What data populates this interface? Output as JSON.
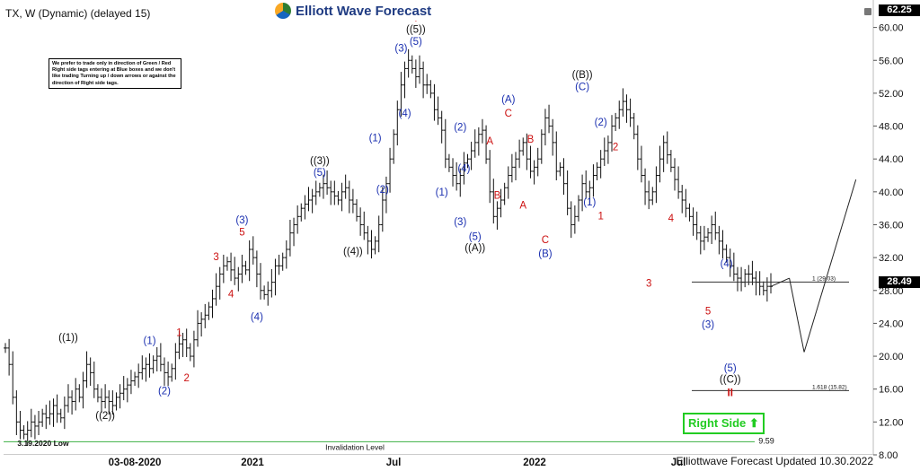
{
  "header": {
    "symbol_line": "TX, W (Dynamic) (delayed 15)"
  },
  "logo": {
    "text": "Elliott Wave Forecast",
    "icon": "ewf-globe-icon"
  },
  "note": {
    "text": "We prefer to trade only in direction of Green / Red Right side tags entering at Blue boxes and we don't like trading Turning up / down arrows or against the direction of Right side tags."
  },
  "price_axis": {
    "current_top": "62.25",
    "current_price": "28.49",
    "ticks": [
      "60.00",
      "56.00",
      "52.00",
      "48.00",
      "44.00",
      "40.00",
      "36.00",
      "32.00",
      "28.00",
      "24.00",
      "20.00",
      "16.00",
      "12.00",
      "8.00"
    ]
  },
  "time_axis": {
    "labels": [
      "03-08-2020",
      "2021",
      "Jul",
      "2022",
      "Jul"
    ]
  },
  "badge": {
    "right_side": "Right Side",
    "arrow_icon": "up-arrow-icon"
  },
  "footer": {
    "updated": "Elliottwave Forecast Updated 10.30.2022"
  },
  "colors": {
    "black": "#111111",
    "blue": "#1a2fb0",
    "red": "#cc1111",
    "green": "#22cc22",
    "invalidation": "#3cb043"
  },
  "chart_data": {
    "type": "ohlc",
    "title": "TX, W (Dynamic) (delayed 15)",
    "ylim": [
      8,
      62.25
    ],
    "y_scale": "linear",
    "grid": false,
    "closes": [
      21,
      19,
      15,
      12,
      11,
      10.5,
      11,
      12,
      11.5,
      12,
      13,
      12.5,
      13,
      14,
      13,
      12.5,
      14,
      15,
      14.5,
      16,
      15,
      17,
      19,
      18,
      16,
      15,
      14.5,
      15,
      14.5,
      14,
      15,
      15.5,
      16,
      16.5,
      17,
      17.5,
      18,
      18.5,
      19,
      18.5,
      19.5,
      20,
      19,
      18,
      17.5,
      18.5,
      20.5,
      21.5,
      22,
      21,
      20,
      22,
      24,
      24.5,
      25,
      26,
      27,
      28.5,
      30,
      31,
      31.5,
      30.5,
      29.5,
      30,
      31,
      30.5,
      33,
      32,
      30,
      28,
      27.5,
      28,
      29,
      31,
      31,
      32,
      33,
      35,
      36,
      37,
      38,
      38.5,
      39,
      39.5,
      40,
      40.5,
      41,
      40.5,
      40,
      39.5,
      39,
      40,
      40.5,
      39,
      38.5,
      37,
      36,
      35,
      34,
      33,
      34,
      36,
      39,
      41,
      44,
      47,
      50,
      53,
      55,
      56,
      55,
      54,
      55,
      53,
      53,
      52,
      50,
      49,
      47.5,
      44,
      43,
      42,
      41,
      42,
      43.5,
      44,
      45,
      46,
      47,
      47.5,
      44,
      40,
      37,
      38,
      39,
      40.5,
      42,
      43,
      44,
      45,
      46,
      44,
      42.5,
      43,
      44,
      47,
      49,
      48,
      46,
      42.5,
      43,
      41,
      38,
      36,
      37,
      39,
      41,
      40,
      40.5,
      42,
      43,
      44,
      45,
      46,
      48,
      49,
      50,
      51,
      50,
      49,
      47,
      44,
      42,
      40,
      39,
      40,
      42,
      44,
      46,
      44.5,
      43,
      41.5,
      40,
      39,
      38,
      37,
      36,
      35,
      34,
      34.5,
      35,
      36,
      35,
      34,
      33,
      32,
      31,
      30,
      29.5,
      29,
      30,
      30,
      29.5,
      29,
      28.5,
      28,
      28.5,
      28.49
    ],
    "projection": [
      [
        28.49,
        5,
        29.5
      ],
      [
        29.5,
        4,
        20.5
      ],
      [
        20.5,
        14,
        41.5
      ]
    ],
    "levels": [
      {
        "name": "fib-1.0",
        "label": "1 (29.03)",
        "value": 29.03
      },
      {
        "name": "fib-1.618",
        "label": "1.618 (15.82)",
        "value": 15.82
      },
      {
        "name": "invalidation",
        "label": "Invalidation Level",
        "value": 9.59,
        "value_label": "9.59"
      }
    ],
    "low_label": "3.19.2020 Low",
    "wave_labels": [
      {
        "text": "((1))",
        "i": 17,
        "y": 22.3,
        "color": "black"
      },
      {
        "text": "((2))",
        "i": 27,
        "y": 12.8,
        "color": "black"
      },
      {
        "text": "(1)",
        "i": 39,
        "y": 21.9,
        "color": "blue"
      },
      {
        "text": "(2)",
        "i": 43,
        "y": 15.8,
        "color": "blue"
      },
      {
        "text": "1",
        "i": 47,
        "y": 22.9,
        "color": "red"
      },
      {
        "text": "2",
        "i": 49,
        "y": 17.4,
        "color": "red"
      },
      {
        "text": "3",
        "i": 57,
        "y": 32.1,
        "color": "red"
      },
      {
        "text": "4",
        "i": 61,
        "y": 27.6,
        "color": "red"
      },
      {
        "text": "5",
        "i": 64,
        "y": 35.1,
        "color": "red"
      },
      {
        "text": "(3)",
        "i": 64,
        "y": 36.6,
        "color": "blue"
      },
      {
        "text": "(4)",
        "i": 68,
        "y": 24.8,
        "color": "blue"
      },
      {
        "text": "((3))",
        "i": 85,
        "y": 43.8,
        "color": "black"
      },
      {
        "text": "(5)",
        "i": 85,
        "y": 42.4,
        "color": "blue"
      },
      {
        "text": "((4))",
        "i": 94,
        "y": 32.8,
        "color": "black"
      },
      {
        "text": "(1)",
        "i": 100,
        "y": 46.6,
        "color": "blue"
      },
      {
        "text": "(2)",
        "i": 102,
        "y": 40.3,
        "color": "blue"
      },
      {
        "text": "(3)",
        "i": 107,
        "y": 57.5,
        "color": "blue"
      },
      {
        "text": "(4)",
        "i": 108,
        "y": 49.6,
        "color": "blue"
      },
      {
        "text": "(5)",
        "i": 111,
        "y": 58.3,
        "color": "blue"
      },
      {
        "text": "((5))",
        "i": 111,
        "y": 59.8,
        "color": "black"
      },
      {
        "text": "I",
        "i": 111,
        "y": 61.2,
        "color": "red"
      },
      {
        "text": "(1)",
        "i": 118,
        "y": 40.0,
        "color": "blue"
      },
      {
        "text": "(2)",
        "i": 123,
        "y": 47.9,
        "color": "blue"
      },
      {
        "text": "(4)",
        "i": 124,
        "y": 42.9,
        "color": "blue"
      },
      {
        "text": "(3)",
        "i": 123,
        "y": 36.4,
        "color": "blue"
      },
      {
        "text": "(5)",
        "i": 127,
        "y": 34.6,
        "color": "blue"
      },
      {
        "text": "((A))",
        "i": 127,
        "y": 33.2,
        "color": "black"
      },
      {
        "text": "A",
        "i": 131,
        "y": 46.2,
        "color": "red"
      },
      {
        "text": "B",
        "i": 133,
        "y": 39.6,
        "color": "red"
      },
      {
        "text": "(A)",
        "i": 136,
        "y": 51.3,
        "color": "blue"
      },
      {
        "text": "C",
        "i": 136,
        "y": 49.6,
        "color": "red"
      },
      {
        "text": "A",
        "i": 140,
        "y": 38.4,
        "color": "red"
      },
      {
        "text": "B",
        "i": 142,
        "y": 46.4,
        "color": "red"
      },
      {
        "text": "C",
        "i": 146,
        "y": 34.2,
        "color": "red"
      },
      {
        "text": "(B)",
        "i": 146,
        "y": 32.5,
        "color": "blue"
      },
      {
        "text": "((B))",
        "i": 156,
        "y": 54.3,
        "color": "black"
      },
      {
        "text": "(C)",
        "i": 156,
        "y": 52.8,
        "color": "blue"
      },
      {
        "text": "(2)",
        "i": 161,
        "y": 48.5,
        "color": "blue"
      },
      {
        "text": "2",
        "i": 165,
        "y": 45.5,
        "color": "red"
      },
      {
        "text": "(1)",
        "i": 158,
        "y": 38.8,
        "color": "blue"
      },
      {
        "text": "1",
        "i": 161,
        "y": 37.1,
        "color": "red"
      },
      {
        "text": "4",
        "i": 180,
        "y": 36.8,
        "color": "red"
      },
      {
        "text": "3",
        "i": 174,
        "y": 28.9,
        "color": "red"
      },
      {
        "text": "(4)",
        "i": 195,
        "y": 31.3,
        "color": "blue"
      },
      {
        "text": "5",
        "i": 190,
        "y": 25.5,
        "color": "red"
      },
      {
        "text": "(3)",
        "i": 190,
        "y": 23.9,
        "color": "blue"
      },
      {
        "text": "(5)",
        "i": 196,
        "y": 18.6,
        "color": "blue"
      },
      {
        "text": "((C))",
        "i": 196,
        "y": 17.2,
        "color": "black"
      },
      {
        "text": "II",
        "i": 196,
        "y": 15.6,
        "color": "red"
      }
    ]
  }
}
